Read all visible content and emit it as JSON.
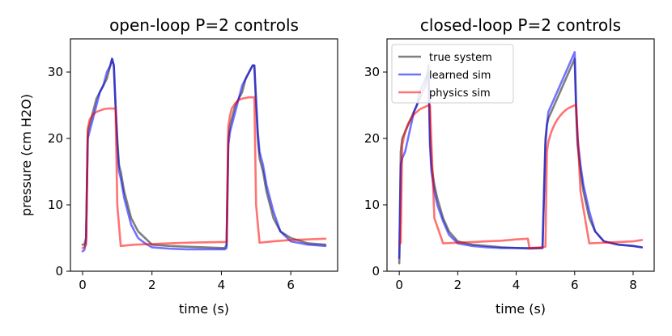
{
  "chart_data": [
    {
      "type": "line",
      "title": "open-loop P=2 controls",
      "xlabel": "time (s)",
      "ylabel": "pressure (cm H2O)",
      "xlim": [
        -0.35,
        7.35
      ],
      "ylim": [
        0,
        35
      ],
      "xticks": [
        0,
        2,
        4,
        6
      ],
      "yticks": [
        0,
        10,
        20,
        30
      ],
      "xtick_labels": [
        "0",
        "2",
        "4",
        "6"
      ],
      "ytick_labels": [
        "0",
        "10",
        "20",
        "30"
      ],
      "legend": null,
      "series": [
        {
          "name": "true system",
          "color": "#7f7f7f",
          "x": [
            0,
            0.05,
            0.1,
            0.15,
            0.2,
            0.3,
            0.4,
            0.5,
            0.6,
            0.7,
            0.8,
            0.85,
            0.9,
            0.95,
            1.0,
            1.05,
            1.1,
            1.2,
            1.3,
            1.4,
            1.6,
            1.8,
            2.0,
            2.5,
            3.0,
            3.5,
            4.0,
            4.1,
            4.15,
            4.2,
            4.25,
            4.3,
            4.4,
            4.5,
            4.6,
            4.7,
            4.8,
            4.9,
            4.95,
            5.0,
            5.05,
            5.1,
            5.2,
            5.3,
            5.5,
            5.7,
            6.0,
            6.5,
            7.0
          ],
          "y": [
            4,
            4,
            5,
            21,
            22,
            24,
            26,
            27,
            28,
            29,
            31,
            32,
            31,
            25,
            20,
            16,
            15,
            12,
            10,
            8,
            6,
            5,
            4,
            3.8,
            3.7,
            3.6,
            3.5,
            3.5,
            4,
            20,
            22,
            23,
            25,
            26,
            27,
            29,
            30,
            31,
            31,
            25,
            20,
            17,
            15,
            12,
            8,
            6,
            5,
            4.2,
            4
          ]
        },
        {
          "name": "learned sim",
          "color": "#0000ff",
          "x": [
            0,
            0.05,
            0.1,
            0.15,
            0.2,
            0.3,
            0.4,
            0.5,
            0.6,
            0.7,
            0.8,
            0.85,
            0.9,
            0.95,
            1.0,
            1.05,
            1.1,
            1.2,
            1.3,
            1.4,
            1.6,
            1.8,
            2.0,
            2.5,
            3.0,
            3.5,
            4.0,
            4.1,
            4.15,
            4.2,
            4.25,
            4.3,
            4.4,
            4.5,
            4.6,
            4.7,
            4.8,
            4.9,
            4.95,
            5.0,
            5.05,
            5.1,
            5.2,
            5.3,
            5.5,
            5.7,
            6.0,
            6.5,
            7.0
          ],
          "y": [
            3,
            3.2,
            4.5,
            20,
            21,
            23,
            25,
            27,
            28,
            30,
            31,
            32,
            31,
            25,
            19,
            15,
            14,
            11,
            9,
            7,
            5,
            4.2,
            3.6,
            3.4,
            3.3,
            3.3,
            3.3,
            3.3,
            3.5,
            19,
            21,
            22,
            24,
            26,
            28,
            29,
            30,
            31,
            31,
            26,
            21,
            18,
            16,
            13,
            9,
            6,
            4.5,
            4,
            3.8
          ]
        },
        {
          "name": "physics sim",
          "color": "#ff0000",
          "x": [
            0,
            0.05,
            0.1,
            0.15,
            0.2,
            0.3,
            0.4,
            0.5,
            0.6,
            0.7,
            0.8,
            0.9,
            0.95,
            1.0,
            1.1,
            1.5,
            2.0,
            2.5,
            3.0,
            3.5,
            4.0,
            4.15,
            4.2,
            4.25,
            4.3,
            4.4,
            4.5,
            4.6,
            4.7,
            4.8,
            4.9,
            4.95,
            5.0,
            5.1,
            5.5,
            6.0,
            6.5,
            7.0
          ],
          "y": [
            3.5,
            3.6,
            4,
            21.5,
            22.8,
            23.6,
            24,
            24.2,
            24.4,
            24.5,
            24.5,
            24.5,
            24.5,
            10,
            3.8,
            4,
            4.1,
            4.2,
            4.3,
            4.35,
            4.4,
            4.4,
            21.8,
            23.5,
            24.5,
            25.3,
            25.8,
            26,
            26.1,
            26.2,
            26.2,
            26.2,
            10,
            4.3,
            4.5,
            4.7,
            4.8,
            4.9
          ]
        }
      ]
    },
    {
      "type": "line",
      "title": "closed-loop P=2 controls",
      "xlabel": "time (s)",
      "ylabel": "",
      "xlim": [
        -0.42,
        8.72
      ],
      "ylim": [
        0,
        35
      ],
      "xticks": [
        0,
        2,
        4,
        6,
        8
      ],
      "yticks": [
        0,
        10,
        20,
        30
      ],
      "xtick_labels": [
        "0",
        "2",
        "4",
        "6",
        "8"
      ],
      "ytick_labels": [
        "0",
        "10",
        "20",
        "30"
      ],
      "legend": {
        "position": "top-left",
        "entries": [
          "true system",
          "learned sim",
          "physics sim"
        ]
      },
      "series": [
        {
          "name": "true system",
          "color": "#7f7f7f",
          "x": [
            0,
            0.05,
            0.1,
            0.2,
            0.3,
            0.4,
            0.5,
            0.6,
            0.7,
            0.8,
            0.9,
            1.0,
            1.05,
            1.1,
            1.2,
            1.3,
            1.5,
            1.7,
            2.0,
            2.5,
            3.0,
            3.5,
            4.0,
            4.5,
            4.9,
            5.0,
            5.05,
            5.1,
            5.2,
            5.3,
            5.5,
            5.7,
            5.9,
            6.0,
            6.05,
            6.1,
            6.2,
            6.3,
            6.5,
            6.7,
            7.0,
            7.5,
            8.0,
            8.3
          ],
          "y": [
            1.2,
            18,
            20,
            21,
            22,
            23,
            24,
            25,
            26,
            27,
            28,
            31,
            20,
            16,
            13,
            11,
            8,
            6,
            4.5,
            4,
            3.8,
            3.6,
            3.5,
            3.4,
            3.5,
            20,
            22,
            23,
            24,
            25,
            27,
            29,
            31,
            32,
            24,
            19,
            15,
            12,
            8,
            6,
            4.5,
            4,
            3.8,
            3.6
          ]
        },
        {
          "name": "learned sim",
          "color": "#0000ff",
          "x": [
            0,
            0.05,
            0.1,
            0.2,
            0.3,
            0.4,
            0.5,
            0.6,
            0.7,
            0.8,
            0.9,
            1.0,
            1.05,
            1.1,
            1.2,
            1.3,
            1.5,
            1.7,
            2.0,
            2.5,
            3.0,
            3.5,
            4.0,
            4.5,
            4.9,
            5.0,
            5.05,
            5.1,
            5.2,
            5.3,
            5.5,
            5.7,
            5.9,
            6.0,
            6.05,
            6.1,
            6.2,
            6.3,
            6.5,
            6.7,
            7.0,
            7.5,
            8.0,
            8.3
          ],
          "y": [
            2,
            16,
            17,
            18,
            20,
            22,
            24,
            25,
            27,
            28,
            29,
            30,
            19,
            15,
            12,
            10,
            7.5,
            5.5,
            4.2,
            3.8,
            3.6,
            3.5,
            3.5,
            3.5,
            3.5,
            19,
            22,
            24,
            25,
            26,
            28,
            30,
            32,
            33,
            25,
            20,
            16,
            13,
            9,
            6,
            4.5,
            4,
            3.8,
            3.6
          ]
        },
        {
          "name": "physics sim",
          "color": "#ff0000",
          "x": [
            0,
            0.05,
            0.1,
            0.2,
            0.3,
            0.4,
            0.5,
            0.6,
            0.7,
            0.8,
            0.9,
            1.0,
            1.05,
            1.2,
            1.5,
            2.0,
            2.5,
            3.0,
            3.5,
            4.0,
            4.4,
            4.45,
            4.9,
            5.0,
            5.05,
            5.1,
            5.2,
            5.3,
            5.4,
            5.5,
            5.6,
            5.7,
            5.8,
            5.9,
            6.0,
            6.05,
            6.2,
            6.5,
            7.0,
            7.5,
            8.0,
            8.3
          ],
          "y": [
            4,
            4.3,
            19,
            21,
            22.2,
            23,
            23.6,
            24,
            24.4,
            24.6,
            24.8,
            25,
            25,
            8,
            4.2,
            4.3,
            4.4,
            4.5,
            4.6,
            4.8,
            4.9,
            3.5,
            3.6,
            3.7,
            18,
            19.5,
            21,
            22,
            22.8,
            23.4,
            23.9,
            24.3,
            24.6,
            24.8,
            25,
            25,
            12,
            4.2,
            4.3,
            4.4,
            4.5,
            4.7
          ]
        }
      ]
    }
  ]
}
